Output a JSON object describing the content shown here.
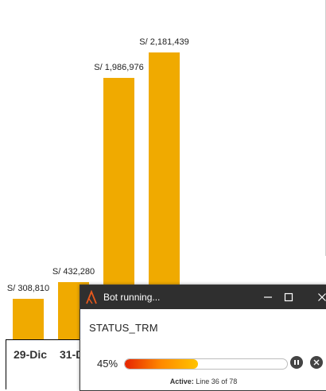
{
  "chart_data": {
    "type": "bar",
    "categories": [
      "29-Dic",
      "31-D",
      "",
      ""
    ],
    "values": [
      308810,
      432280,
      1986976,
      2181439
    ],
    "data_labels": [
      "S/ 308,810",
      "S/ 432,280",
      "S/ 1,986,976",
      "S/ 2,181,439"
    ],
    "title": "",
    "xlabel": "",
    "ylabel": "",
    "bar_color": "#F0AA00"
  },
  "bot_window": {
    "title": "Bot running...",
    "minimize_icon": "minimize-icon",
    "maximize_icon": "maximize-icon",
    "close_icon": "close-icon",
    "status": "STATUS_TRM",
    "progress_percent": 45,
    "progress_label": "45%",
    "active_prefix": "Active:",
    "active_detail": "Line 36 of 78",
    "pause_icon": "pause-icon",
    "stop_icon": "stop-icon",
    "colors": {
      "titlebar": "#2F2F2F",
      "progress_start": "#E62400",
      "progress_end": "#FFC400"
    }
  }
}
